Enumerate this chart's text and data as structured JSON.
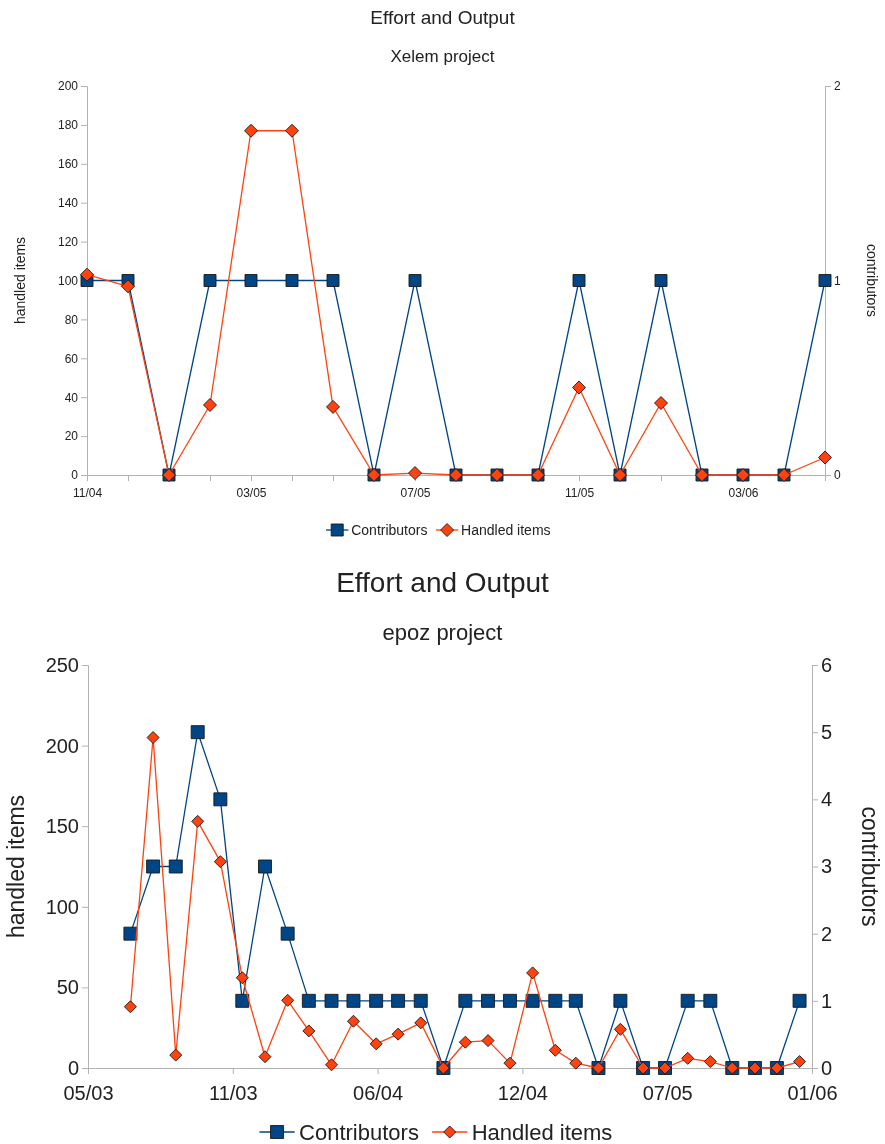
{
  "chart_data": [
    {
      "type": "line",
      "title": "Effort and Output",
      "subtitle": "Xelem project",
      "ylabel": "handled items",
      "y2label": "contributors",
      "categories": [
        "11/04",
        null,
        null,
        null,
        "03/05",
        null,
        null,
        null,
        "07/05",
        null,
        null,
        null,
        "11/05",
        null,
        null,
        null,
        "03/06",
        null,
        null
      ],
      "ylim": [
        0,
        200
      ],
      "yticks": [
        0,
        20,
        40,
        60,
        80,
        100,
        120,
        140,
        160,
        180,
        200
      ],
      "y2lim": [
        0,
        2
      ],
      "y2ticks": [
        0,
        1,
        2
      ],
      "series": [
        {
          "name": "Contributors",
          "color": "#004586",
          "axis": "y2",
          "marker": "square",
          "values": [
            1,
            1,
            0,
            1,
            1,
            1,
            1,
            0,
            1,
            0,
            0,
            0,
            1,
            0,
            1,
            0,
            0,
            0,
            1
          ]
        },
        {
          "name": "Handled items",
          "color": "#ff420e",
          "marker": "diamond",
          "values": [
            103,
            97,
            0,
            36,
            177,
            177,
            35,
            0,
            1,
            0,
            0,
            0,
            45,
            0,
            37,
            0,
            0,
            0,
            9
          ]
        }
      ],
      "grid": false,
      "legend": "bottom"
    },
    {
      "type": "line",
      "title": "Effort and Output",
      "subtitle": "epoz project",
      "ylabel": "handled items",
      "y2label": "contributors",
      "x": [
        "2003-07",
        "2003-08",
        "2003-09",
        "2003-10",
        "2003-11",
        "2003-12",
        "2004-01",
        "2004-02",
        "2004-03",
        "2004-04",
        "2004-05",
        "2004-06",
        "2004-07",
        "2004-08",
        "2004-09",
        "2004-10",
        "2004-11",
        "2004-12",
        "2005-01",
        "2005-02",
        "2005-03",
        "2005-04",
        "2005-05",
        "2005-06",
        "2005-07",
        "2005-08",
        "2005-09",
        "2005-10",
        "2005-11",
        "2005-12",
        "2006-01"
      ],
      "xlim": [
        "2003-05-04",
        "2006-01-18"
      ],
      "xticks": [
        {
          "value": "2003-05-04",
          "label": "05/03"
        },
        {
          "value": "2003-11-18",
          "label": "11/03"
        },
        {
          "value": "2004-06-03",
          "label": "06/04"
        },
        {
          "value": "2004-12-18",
          "label": "12/04"
        },
        {
          "value": "2005-07-04",
          "label": "07/05"
        },
        {
          "value": "2006-01-18",
          "label": "01/06"
        }
      ],
      "ylim": [
        0,
        250
      ],
      "yticks": [
        0,
        50,
        100,
        150,
        200,
        250
      ],
      "y2lim": [
        0,
        6
      ],
      "y2ticks": [
        0,
        1,
        2,
        3,
        4,
        5,
        6
      ],
      "series": [
        {
          "name": "Contributors",
          "color": "#004586",
          "axis": "y2",
          "marker": "square",
          "values": [
            2,
            3,
            3,
            5,
            4,
            1,
            3,
            2,
            1,
            1,
            1,
            1,
            1,
            1,
            0,
            1,
            1,
            1,
            1,
            1,
            1,
            0,
            1,
            0,
            0,
            1,
            1,
            0,
            0,
            0,
            1
          ]
        },
        {
          "name": "Handled items",
          "color": "#ff420e",
          "marker": "diamond",
          "values": [
            38,
            205,
            8,
            153,
            128,
            56,
            7,
            42,
            23,
            2,
            29,
            15,
            21,
            28,
            0,
            16,
            17,
            3,
            59,
            11,
            3,
            0,
            24,
            0,
            0,
            6,
            4,
            0,
            0,
            0,
            4
          ]
        }
      ],
      "grid": false,
      "legend": "bottom"
    }
  ]
}
